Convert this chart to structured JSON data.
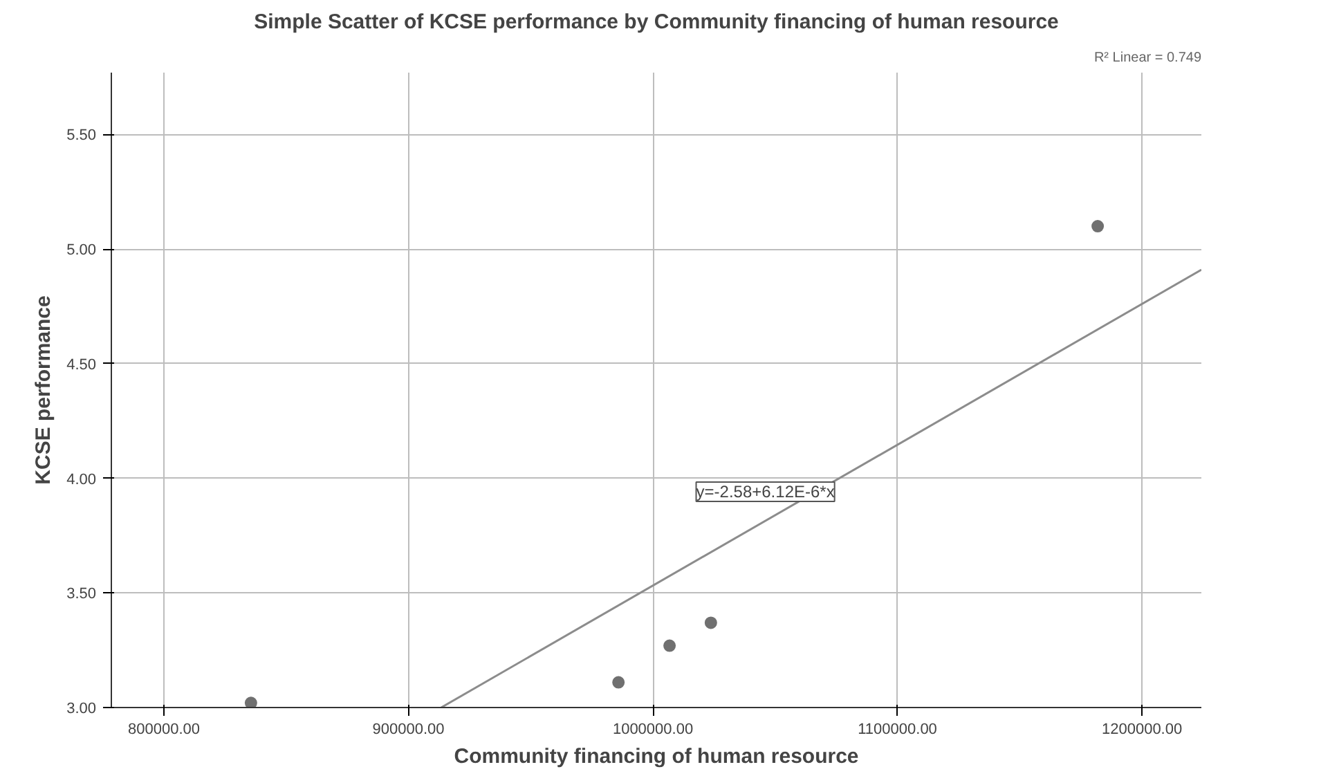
{
  "chart_data": {
    "type": "scatter",
    "title": "Simple Scatter of KCSE performance by Community financing of human resource",
    "xlabel": "Community financing of human resource",
    "ylabel": "KCSE performance",
    "series": [
      {
        "marker": "circle",
        "color": "#707070",
        "x": [
          835600,
          985900,
          1006800,
          1023700,
          1181900
        ],
        "values": [
          3.02,
          3.11,
          3.27,
          3.37,
          5.1
        ]
      },
      {
        "type": "line",
        "marker": "none",
        "color": "#8c8c8c",
        "x": [
          913400,
          1224300
        ],
        "values": [
          3.0,
          4.91
        ]
      }
    ],
    "annotations": [
      "y=-2.58+6.12E-6*x",
      "R² Linear = 0.749"
    ],
    "xlim": [
      778500,
      1224300
    ],
    "ylim": [
      3.0,
      5.77
    ],
    "xticks": [
      {
        "value": 800000,
        "label": "800000.00"
      },
      {
        "value": 900000,
        "label": "900000.00"
      },
      {
        "value": 1000000,
        "label": "1000000.00"
      },
      {
        "value": 1100000,
        "label": "1100000.00"
      },
      {
        "value": 1200000,
        "label": "1200000.00"
      }
    ],
    "yticks": [
      {
        "value": 3.0,
        "label": "3.00"
      },
      {
        "value": 3.5,
        "label": "3.50"
      },
      {
        "value": 4.0,
        "label": "4.00"
      },
      {
        "value": 4.5,
        "label": "4.50"
      },
      {
        "value": 5.0,
        "label": "5.00"
      },
      {
        "value": 5.5,
        "label": "5.50"
      }
    ],
    "grid": true
  }
}
